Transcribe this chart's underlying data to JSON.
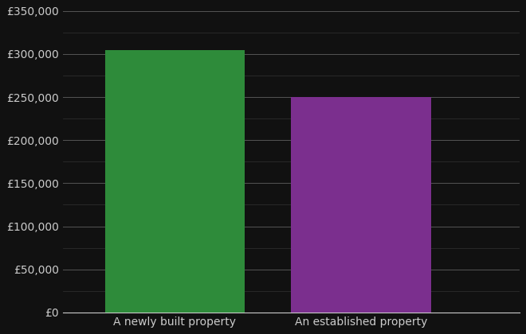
{
  "categories": [
    "A newly built property",
    "An established property"
  ],
  "values": [
    305000,
    250000
  ],
  "bar_colors": [
    "#2e8b3a",
    "#7b2f8e"
  ],
  "background_color": "#111111",
  "text_color": "#cccccc",
  "grid_color_major": "#555555",
  "grid_color_minor": "#333333",
  "ylim": [
    0,
    350000
  ],
  "yticks_major": [
    0,
    50000,
    100000,
    150000,
    200000,
    250000,
    300000,
    350000
  ],
  "yticks_minor": [
    25000,
    75000,
    125000,
    175000,
    225000,
    275000,
    325000
  ],
  "bar_positions": [
    1,
    2
  ],
  "bar_width": 0.75,
  "xlim": [
    0.4,
    2.85
  ],
  "xlabel_fontsize": 10,
  "tick_fontsize": 10
}
